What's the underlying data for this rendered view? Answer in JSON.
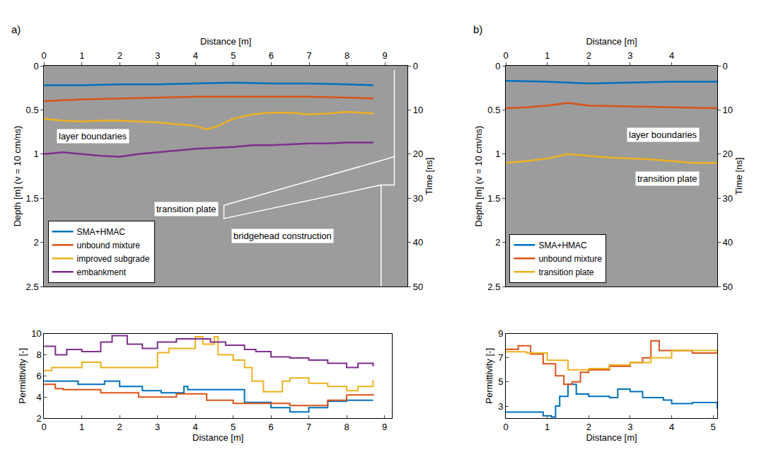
{
  "chart_data": [
    {
      "type": "line",
      "label": "a)",
      "xlabel": "Distance [m]",
      "ylabel": "Depth [m] (v = 10 cm/ns)",
      "y2label": "Time [ns]",
      "xlim": [
        0,
        9.6
      ],
      "xticks": [
        0,
        1,
        2,
        3,
        4,
        5,
        6,
        7,
        8,
        9
      ],
      "ylim": [
        2.5,
        0
      ],
      "yticks": [
        0,
        0.5,
        1,
        1.5,
        2,
        2.5
      ],
      "y2lim": [
        50,
        0
      ],
      "y2ticks": [
        0,
        10,
        20,
        30,
        40,
        50
      ],
      "legend": "lower left",
      "series": [
        {
          "name": "SMA+HMAC",
          "color": "#0072BD",
          "x": [
            0,
            1,
            2,
            3,
            4,
            5,
            6,
            7,
            8,
            8.7
          ],
          "values": [
            0.22,
            0.22,
            0.21,
            0.21,
            0.2,
            0.19,
            0.2,
            0.2,
            0.21,
            0.22
          ]
        },
        {
          "name": "unbound mixture",
          "color": "#D95319",
          "x": [
            0,
            1,
            2,
            3,
            4,
            5,
            6,
            7,
            8,
            8.7
          ],
          "values": [
            0.4,
            0.38,
            0.37,
            0.36,
            0.35,
            0.35,
            0.35,
            0.35,
            0.36,
            0.37
          ]
        },
        {
          "name": "improved subgrade",
          "color": "#EDB120",
          "x": [
            0,
            0.5,
            1,
            1.5,
            2,
            2.5,
            3,
            3.5,
            4,
            4.3,
            4.6,
            5,
            5.5,
            6,
            6.5,
            7,
            7.5,
            8,
            8.5,
            8.7
          ],
          "values": [
            0.6,
            0.62,
            0.63,
            0.62,
            0.62,
            0.63,
            0.64,
            0.66,
            0.68,
            0.72,
            0.68,
            0.6,
            0.55,
            0.53,
            0.53,
            0.55,
            0.54,
            0.52,
            0.53,
            0.54
          ]
        },
        {
          "name": "embankment",
          "color": "#7E2F8E",
          "x": [
            0,
            0.5,
            1,
            1.5,
            2,
            2.5,
            3,
            3.5,
            4,
            4.5,
            5,
            5.5,
            6,
            6.5,
            7,
            7.5,
            8,
            8.7
          ],
          "values": [
            1.0,
            0.98,
            1.0,
            1.02,
            1.03,
            1.0,
            0.98,
            0.96,
            0.94,
            0.93,
            0.92,
            0.9,
            0.9,
            0.89,
            0.88,
            0.88,
            0.87,
            0.87
          ]
        }
      ],
      "outlines": [
        {
          "x": [
            4.75,
            9.25,
            9.25,
            8.9,
            4.75,
            4.75
          ],
          "y": [
            1.58,
            1.03,
            1.35,
            1.35,
            1.73,
            1.58
          ]
        },
        {
          "x": [
            8.9,
            8.9
          ],
          "y": [
            1.35,
            2.5
          ]
        },
        {
          "x": [
            9.25,
            9.25
          ],
          "y": [
            0.05,
            1.03
          ]
        }
      ],
      "annotations": [
        {
          "text": "layer boundaries",
          "x": 1.3,
          "y": 0.8
        },
        {
          "text": "transition plate",
          "x": 3.75,
          "y": 1.62
        },
        {
          "text": "bridgehead construction",
          "x": 6.3,
          "y": 1.93
        }
      ]
    },
    {
      "type": "line",
      "line_style": "step",
      "xlabel": "Distance [m]",
      "ylabel": "Permittivity [-]",
      "xlim": [
        0,
        9.2
      ],
      "xticks": [
        0,
        1,
        2,
        3,
        4,
        5,
        6,
        7,
        8,
        9
      ],
      "ylim": [
        2,
        10
      ],
      "yticks": [
        2,
        4,
        6,
        8,
        10
      ],
      "series": [
        {
          "name": "SMA+HMAC",
          "color": "#0072BD",
          "x": [
            0,
            0.9,
            1.6,
            2.0,
            2.6,
            3.1,
            3.7,
            3.8,
            5.3,
            6.0,
            6.5,
            7.0,
            7.5,
            8.0,
            8.7
          ],
          "values": [
            5.5,
            5.2,
            5.5,
            5.0,
            4.6,
            4.4,
            5.0,
            4.7,
            3.5,
            3.0,
            2.6,
            3.0,
            3.6,
            3.7,
            3.7
          ]
        },
        {
          "name": "unbound mixture",
          "color": "#D95319",
          "x": [
            0,
            0.3,
            0.5,
            1.5,
            2.5,
            3.5,
            4.3,
            5.0,
            6.5,
            7.5,
            8.0,
            8.7
          ],
          "values": [
            5.2,
            4.8,
            4.7,
            4.4,
            4.0,
            4.3,
            3.7,
            3.4,
            3.2,
            3.7,
            4.2,
            4.3
          ]
        },
        {
          "name": "improved subgrade",
          "color": "#EDB120",
          "x": [
            0,
            0.2,
            1.0,
            1.5,
            3.0,
            3.3,
            4.0,
            4.2,
            4.5,
            4.6,
            5.0,
            5.3,
            5.5,
            5.8,
            6.3,
            6.5,
            7.0,
            7.5,
            8.0,
            8.3,
            8.7
          ],
          "values": [
            6.5,
            6.8,
            7.3,
            6.8,
            8.2,
            8.6,
            9.7,
            9.0,
            9.7,
            8.0,
            7.5,
            6.8,
            5.5,
            4.5,
            5.5,
            5.8,
            5.3,
            5.0,
            4.6,
            5.0,
            5.6
          ]
        },
        {
          "name": "embankment",
          "color": "#7E2F8E",
          "x": [
            0,
            0.3,
            0.6,
            1.0,
            1.5,
            1.8,
            2.2,
            2.6,
            3.0,
            3.5,
            4.0,
            4.4,
            4.8,
            5.3,
            5.6,
            6.0,
            6.5,
            7.0,
            7.5,
            8.0,
            8.3,
            8.7
          ],
          "values": [
            8.8,
            8.0,
            8.5,
            8.3,
            9.2,
            9.8,
            9.0,
            8.6,
            9.2,
            9.5,
            9.5,
            9.2,
            8.9,
            8.5,
            8.3,
            7.8,
            7.7,
            7.5,
            7.2,
            6.8,
            7.2,
            6.9
          ]
        }
      ]
    },
    {
      "type": "line",
      "label": "b)",
      "xlabel": "Distance [m]",
      "ylabel": "Depth [m] (v = 10 cm/ns)",
      "y2label": "Time [ns]",
      "xlim": [
        0,
        5.1
      ],
      "xticks": [
        0,
        1,
        2,
        3,
        4
      ],
      "ylim": [
        2.5,
        0
      ],
      "yticks": [
        0,
        0.5,
        1,
        1.5,
        2,
        2.5
      ],
      "y2lim": [
        50,
        0
      ],
      "y2ticks": [
        0,
        10,
        20,
        30,
        40,
        50
      ],
      "legend": "lower left",
      "series": [
        {
          "name": "SMA+HMAC",
          "color": "#0072BD",
          "x": [
            0,
            1,
            2,
            3,
            4,
            5.1
          ],
          "values": [
            0.17,
            0.18,
            0.2,
            0.19,
            0.18,
            0.18
          ]
        },
        {
          "name": "unbound mixture",
          "color": "#D95319",
          "x": [
            0,
            0.5,
            1,
            1.5,
            2,
            3,
            4,
            5.1
          ],
          "values": [
            0.48,
            0.47,
            0.45,
            0.42,
            0.45,
            0.46,
            0.47,
            0.48
          ]
        },
        {
          "name": "transition plate",
          "color": "#EDB120",
          "x": [
            0,
            0.5,
            1,
            1.5,
            2,
            2.5,
            3,
            3.5,
            4,
            4.5,
            5.1
          ],
          "values": [
            1.1,
            1.08,
            1.05,
            1.0,
            1.02,
            1.04,
            1.05,
            1.06,
            1.08,
            1.1,
            1.1
          ]
        }
      ],
      "annotations": [
        {
          "text": "layer boundaries",
          "x": 3.8,
          "y": 0.78
        },
        {
          "text": "transition plate",
          "x": 3.9,
          "y": 1.28
        }
      ]
    },
    {
      "type": "line",
      "line_style": "step",
      "xlabel": "Distance [m]",
      "ylabel": "Permittivity [-]",
      "xlim": [
        0,
        5.1
      ],
      "xticks": [
        0,
        1,
        2,
        3,
        4,
        5
      ],
      "ylim": [
        2,
        9
      ],
      "yticks": [
        3,
        5,
        7,
        9
      ],
      "series": [
        {
          "name": "SMA+HMAC",
          "color": "#0072BD",
          "x": [
            0,
            0.5,
            0.9,
            1.1,
            1.2,
            1.3,
            1.5,
            1.7,
            2.0,
            2.5,
            2.7,
            3.0,
            3.3,
            3.8,
            4.0,
            4.5,
            5.1
          ],
          "values": [
            2.5,
            2.5,
            2.2,
            2.1,
            3.0,
            3.8,
            4.8,
            4.0,
            3.8,
            3.7,
            4.4,
            4.2,
            3.7,
            3.5,
            3.2,
            3.3,
            2.8
          ]
        },
        {
          "name": "unbound mixture",
          "color": "#D95319",
          "x": [
            0,
            0.3,
            0.6,
            0.9,
            1.2,
            1.4,
            1.6,
            1.8,
            2.0,
            2.5,
            3.0,
            3.3,
            3.5,
            3.7,
            4.0,
            4.5,
            5.1
          ],
          "values": [
            7.7,
            8.0,
            7.3,
            6.5,
            5.5,
            4.8,
            5.0,
            5.8,
            6.0,
            6.3,
            6.6,
            7.0,
            8.4,
            7.6,
            7.6,
            7.4,
            7.5
          ]
        },
        {
          "name": "transition plate",
          "color": "#EDB120",
          "x": [
            0,
            0.5,
            1.0,
            1.5,
            2.0,
            2.5,
            3.0,
            3.5,
            4.0,
            4.5,
            5.1
          ],
          "values": [
            7.5,
            7.4,
            6.8,
            6.0,
            6.1,
            6.4,
            6.6,
            7.0,
            7.6,
            7.6,
            7.3
          ]
        }
      ]
    }
  ]
}
